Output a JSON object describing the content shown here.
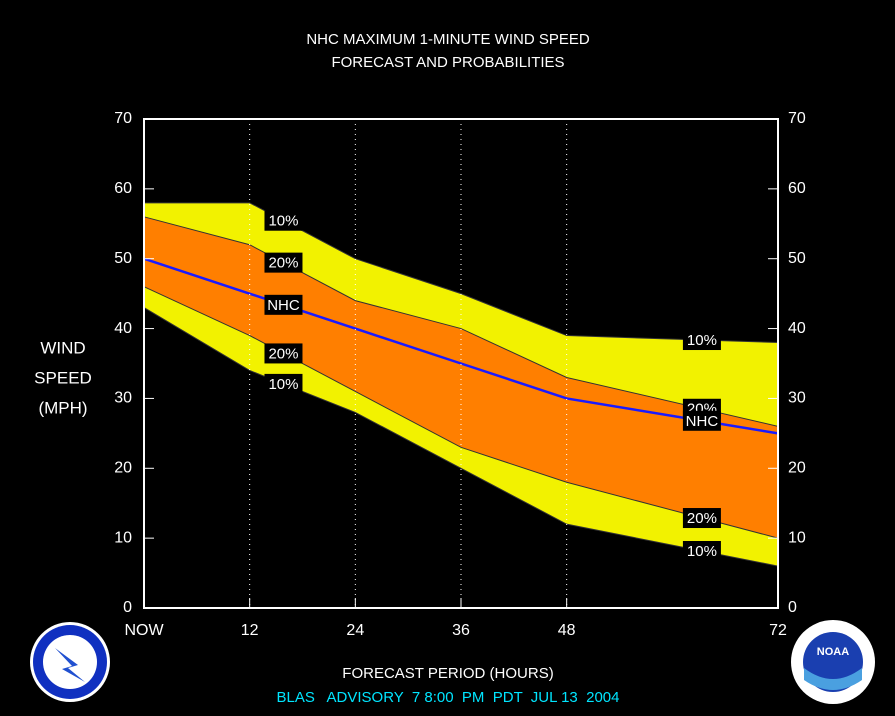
{
  "chart_data": {
    "type": "band-line",
    "title": [
      "NHC MAXIMUM 1-MINUTE WIND SPEED",
      "FORECAST AND PROBABILITIES"
    ],
    "ylabel": [
      "WIND",
      "SPEED",
      "(MPH)"
    ],
    "xlabel": "FORECAST PERIOD (HOURS)",
    "footer": "BLAS   ADVISORY  7 8:00  PM  PDT  JUL 13  2004",
    "logo_text": "NOAA",
    "x": [
      0,
      12,
      24,
      36,
      48,
      72
    ],
    "series": [
      {
        "name": "10%",
        "color": "#f2f200",
        "values": [
          58,
          58,
          50,
          45,
          39,
          38
        ]
      },
      {
        "name": "20%",
        "color": "#ff7f00",
        "values": [
          56,
          52,
          44,
          40,
          33,
          26
        ]
      },
      {
        "name": "NHC",
        "color": "#1a1aff",
        "values": [
          50,
          45,
          40,
          35,
          30,
          25
        ]
      },
      {
        "name": "20%",
        "color": "#ff7f00",
        "values": [
          46,
          39,
          31,
          23,
          18,
          10
        ]
      },
      {
        "name": "10%",
        "color": "#f2f200",
        "values": [
          43,
          34,
          28,
          20,
          12,
          6
        ]
      }
    ],
    "xlim": [
      0,
      72
    ],
    "xticks": [
      {
        "value": 0,
        "label": "NOW"
      },
      12,
      24,
      36,
      48,
      72
    ],
    "ylim": [
      0,
      70
    ],
    "yticks": [
      0,
      10,
      20,
      30,
      40,
      50,
      60,
      70
    ],
    "grid": true
  }
}
